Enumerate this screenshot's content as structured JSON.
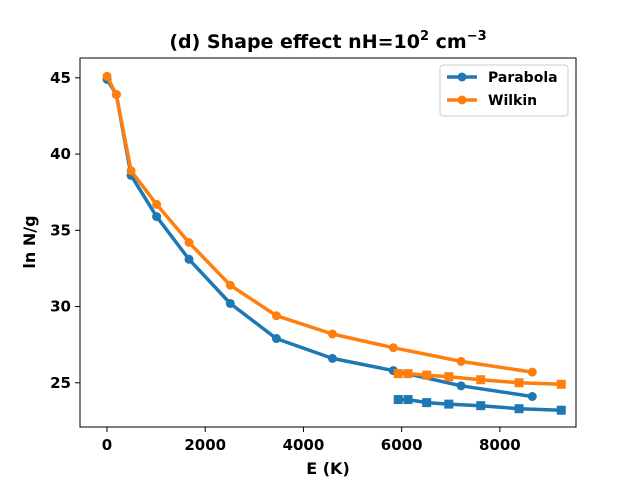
{
  "chart_data": {
    "type": "line",
    "title": "(d) Shape effect nH=10",
    "title_superscript": "2",
    "title_unit": "cm",
    "title_unit_superscript": "−3",
    "xlabel": "E (K)",
    "ylabel": "ln N/g",
    "xlim": [
      -550,
      9550
    ],
    "ylim": [
      22.1,
      46.3
    ],
    "xticks": [
      0,
      2000,
      4000,
      6000,
      8000
    ],
    "yticks": [
      25,
      30,
      35,
      40,
      45
    ],
    "xtick_labels": [
      "0",
      "2000",
      "4000",
      "6000",
      "8000"
    ],
    "ytick_labels": [
      "25",
      "30",
      "35",
      "40",
      "45"
    ],
    "grid": false,
    "legend_position": "upper-right",
    "series": [
      {
        "name": "Parabola",
        "color": "#1f77b4",
        "marker": "circle",
        "x": [
          0,
          190,
          490,
          1010,
          1670,
          2510,
          3450,
          4590,
          5830,
          7210,
          8660
        ],
        "y": [
          44.9,
          43.9,
          38.6,
          35.9,
          33.1,
          30.2,
          27.9,
          26.6,
          25.8,
          24.8,
          24.1
        ]
      },
      {
        "name": "Wilkin",
        "color": "#ff7f0e",
        "marker": "circle",
        "x": [
          0,
          190,
          490,
          1010,
          1670,
          2510,
          3450,
          4590,
          5830,
          7210,
          8660
        ],
        "y": [
          45.1,
          43.9,
          38.9,
          36.7,
          34.2,
          31.4,
          29.4,
          28.2,
          27.3,
          26.4,
          25.7
        ]
      },
      {
        "name": "",
        "color": "#1f77b4",
        "marker": "square",
        "x": [
          5930,
          6130,
          6510,
          6960,
          7610,
          8390,
          9250
        ],
        "y": [
          23.9,
          23.9,
          23.7,
          23.6,
          23.5,
          23.3,
          23.2
        ]
      },
      {
        "name": "",
        "color": "#ff7f0e",
        "marker": "square",
        "x": [
          5930,
          6130,
          6510,
          6960,
          7610,
          8390,
          9250
        ],
        "y": [
          25.6,
          25.6,
          25.5,
          25.4,
          25.2,
          25.0,
          24.9
        ]
      }
    ]
  }
}
